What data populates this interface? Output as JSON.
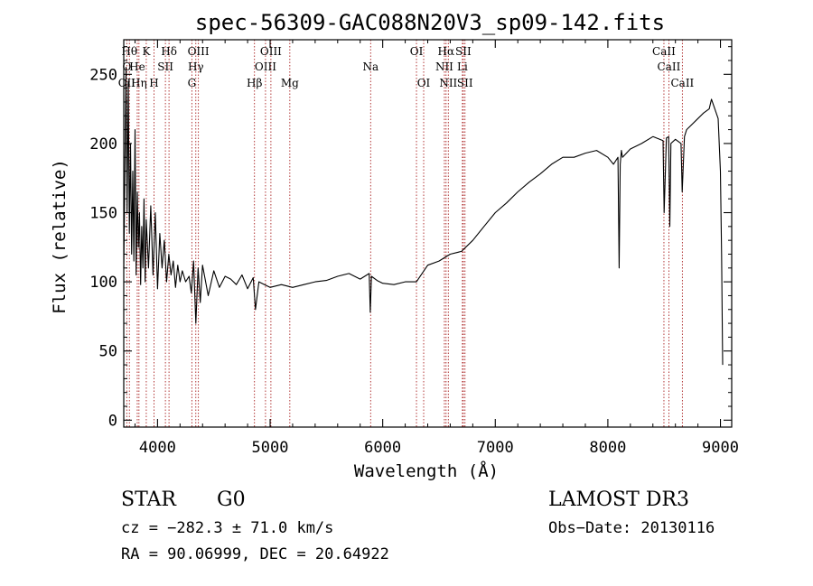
{
  "chart_data": {
    "type": "line",
    "title": "spec-56309-GAC088N20V3_sp09-142.fits",
    "xlabel": "Wavelength (Å)",
    "ylabel": "Flux (relative)",
    "xlim": [
      3700,
      9100
    ],
    "ylim": [
      -5,
      275
    ],
    "xticks": [
      4000,
      5000,
      6000,
      7000,
      8000,
      9000
    ],
    "yticks": [
      0,
      50,
      100,
      150,
      200,
      250
    ],
    "xtick_labels": [
      "4000",
      "5000",
      "6000",
      "7000",
      "8000",
      "9000"
    ],
    "ytick_labels": [
      "0",
      "50",
      "100",
      "150",
      "200",
      "250"
    ],
    "grid": false,
    "series": [
      {
        "name": "flux",
        "color": "#000000",
        "x": [
          3700,
          3710,
          3720,
          3730,
          3740,
          3750,
          3760,
          3770,
          3780,
          3790,
          3800,
          3810,
          3820,
          3830,
          3840,
          3850,
          3860,
          3870,
          3880,
          3890,
          3900,
          3920,
          3940,
          3960,
          3980,
          4000,
          4020,
          4040,
          4060,
          4080,
          4100,
          4120,
          4140,
          4160,
          4180,
          4200,
          4220,
          4250,
          4280,
          4300,
          4320,
          4340,
          4360,
          4380,
          4400,
          4450,
          4500,
          4550,
          4600,
          4650,
          4700,
          4750,
          4800,
          4850,
          4870,
          4900,
          4950,
          5000,
          5100,
          5200,
          5300,
          5400,
          5500,
          5600,
          5700,
          5800,
          5880,
          5890,
          5900,
          5950,
          6000,
          6100,
          6200,
          6300,
          6400,
          6500,
          6560,
          6600,
          6700,
          6800,
          6900,
          7000,
          7100,
          7200,
          7300,
          7400,
          7500,
          7600,
          7700,
          7800,
          7900,
          8000,
          8050,
          8090,
          8100,
          8110,
          8120,
          8130,
          8200,
          8300,
          8400,
          8490,
          8500,
          8520,
          8540,
          8550,
          8560,
          8600,
          8650,
          8660,
          8680,
          8700,
          8800,
          8850,
          8900,
          8920,
          8950,
          8980,
          9000,
          9010,
          9020
        ],
        "values": [
          110,
          175,
          255,
          150,
          245,
          135,
          200,
          120,
          180,
          115,
          210,
          105,
          165,
          125,
          150,
          98,
          140,
          110,
          160,
          100,
          145,
          110,
          155,
          105,
          150,
          95,
          135,
          110,
          130,
          100,
          120,
          105,
          115,
          96,
          112,
          100,
          108,
          100,
          104,
          92,
          115,
          70,
          110,
          85,
          112,
          90,
          108,
          96,
          104,
          102,
          98,
          105,
          95,
          103,
          80,
          100,
          98,
          96,
          98,
          96,
          98,
          100,
          101,
          104,
          106,
          102,
          106,
          78,
          104,
          101,
          99,
          98,
          100,
          100,
          112,
          115,
          118,
          120,
          122,
          130,
          140,
          150,
          157,
          165,
          172,
          178,
          185,
          190,
          190,
          193,
          195,
          190,
          185,
          190,
          110,
          185,
          195,
          190,
          196,
          200,
          205,
          202,
          150,
          204,
          205,
          140,
          200,
          203,
          200,
          165,
          205,
          210,
          218,
          222,
          225,
          232,
          225,
          218,
          180,
          120,
          40
        ]
      }
    ],
    "spectral_lines": [
      {
        "label": "Hθ",
        "x": 3750,
        "row": 1
      },
      {
        "label": "K",
        "x": 3900,
        "row": 1
      },
      {
        "label": "Hδ",
        "x": 4102,
        "row": 1
      },
      {
        "label": "OIII",
        "x": 4363,
        "row": 1
      },
      {
        "label": "OIII",
        "x": 5007,
        "row": 1
      },
      {
        "label": "OI",
        "x": 6300,
        "row": 1
      },
      {
        "label": "Hα",
        "x": 6563,
        "row": 1
      },
      {
        "label": "SII",
        "x": 6716,
        "row": 1
      },
      {
        "label": "CaII",
        "x": 8498,
        "row": 1
      },
      {
        "label": "O",
        "x": 3727,
        "row": 2
      },
      {
        "label": "He",
        "x": 3820,
        "row": 2
      },
      {
        "label": "SII",
        "x": 4070,
        "row": 2
      },
      {
        "label": "Hγ",
        "x": 4340,
        "row": 2
      },
      {
        "label": "OIII",
        "x": 4959,
        "row": 2
      },
      {
        "label": "Na",
        "x": 5893,
        "row": 2
      },
      {
        "label": "NII",
        "x": 6548,
        "row": 2
      },
      {
        "label": "Li",
        "x": 6708,
        "row": 2
      },
      {
        "label": "CaII",
        "x": 8542,
        "row": 2
      },
      {
        "label": "OII",
        "x": 3727,
        "row": 3
      },
      {
        "label": "Hη",
        "x": 3835,
        "row": 3
      },
      {
        "label": "H",
        "x": 3969,
        "row": 3
      },
      {
        "label": "G",
        "x": 4305,
        "row": 3
      },
      {
        "label": "Hβ",
        "x": 4861,
        "row": 3
      },
      {
        "label": "Mg",
        "x": 5175,
        "row": 3
      },
      {
        "label": "OI",
        "x": 6364,
        "row": 3
      },
      {
        "label": "NII",
        "x": 6583,
        "row": 3
      },
      {
        "label": "SII",
        "x": 6731,
        "row": 3
      },
      {
        "label": "CaII",
        "x": 8662,
        "row": 3
      }
    ]
  },
  "info": {
    "class": "STAR",
    "subclass": "G0",
    "survey": "LAMOST DR3",
    "cz": "cz = −282.3 ± 71.0 km/s",
    "obs_date": "Obs−Date: 20130116",
    "radec": "RA =  90.06999, DEC =  20.64922"
  },
  "colors": {
    "line_marker": "#aa2222",
    "spectrum": "#000000",
    "axis": "#000000"
  }
}
